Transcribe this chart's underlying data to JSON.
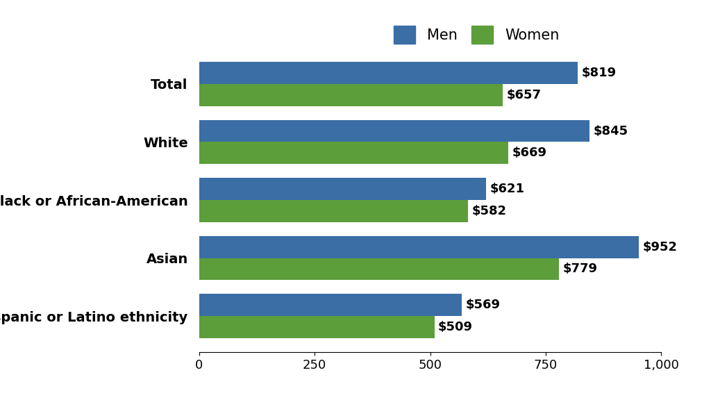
{
  "categories": [
    "Total",
    "White",
    "Black or African-American",
    "Asian",
    "Hispanic or Latino ethnicity"
  ],
  "men_values": [
    819,
    845,
    621,
    952,
    569
  ],
  "women_values": [
    657,
    669,
    582,
    779,
    509
  ],
  "men_color": "#3A6EA5",
  "women_color": "#5C9E3A",
  "background_color": "#ffffff",
  "xlim": [
    0,
    1000
  ],
  "xticks": [
    0,
    250,
    500,
    750,
    1000
  ],
  "xtick_labels": [
    "0",
    "250",
    "500",
    "750",
    "1,000"
  ],
  "legend_labels": [
    "Men",
    "Women"
  ],
  "bar_height": 0.38,
  "label_fontsize": 14,
  "tick_fontsize": 13,
  "legend_fontsize": 15,
  "value_fontsize": 13
}
